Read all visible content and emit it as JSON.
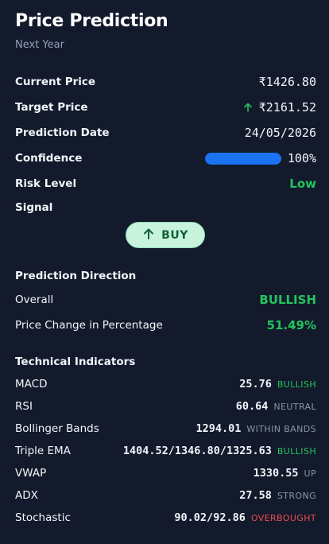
{
  "header": {
    "title": "Price Prediction",
    "subtitle": "Next Year"
  },
  "summary": {
    "current_price_label": "Current Price",
    "current_price_value": "₹1426.80",
    "target_price_label": "Target Price",
    "target_price_value": "₹2161.52",
    "prediction_date_label": "Prediction Date",
    "prediction_date_value": "24/05/2026",
    "confidence_label": "Confidence",
    "confidence_value": "100%",
    "confidence_fraction": 1.0,
    "risk_label": "Risk Level",
    "risk_value": "Low",
    "signal_label": "Signal",
    "signal_button": "BUY"
  },
  "direction": {
    "heading": "Prediction Direction",
    "overall_label": "Overall",
    "overall_value": "BULLISH",
    "change_label": "Price Change in Percentage",
    "change_value": "51.49%"
  },
  "indicators": {
    "heading": "Technical Indicators",
    "items": [
      {
        "name": "MACD",
        "value": "25.76",
        "tag": "BULLISH"
      },
      {
        "name": "RSI",
        "value": "60.64",
        "tag": "NEUTRAL"
      },
      {
        "name": "Bollinger Bands",
        "value": "1294.01",
        "tag": "WITHIN BANDS"
      },
      {
        "name": "Triple EMA",
        "value": "1404.52/1346.80/1325.63",
        "tag": "BULLISH"
      },
      {
        "name": "VWAP",
        "value": "1330.55",
        "tag": "UP"
      },
      {
        "name": "ADX",
        "value": "27.58",
        "tag": "STRONG"
      },
      {
        "name": "Stochastic",
        "value": "90.02/92.86",
        "tag": "OVERBOUGHT"
      }
    ]
  },
  "colors": {
    "background": "#131a2c",
    "positive": "#22c35e",
    "negative": "#ef4c4c",
    "accent": "#1a73f0",
    "muted": "#8a93a6"
  },
  "icons": {
    "target_trend": "arrow-up-icon",
    "buy": "arrow-up-icon"
  }
}
